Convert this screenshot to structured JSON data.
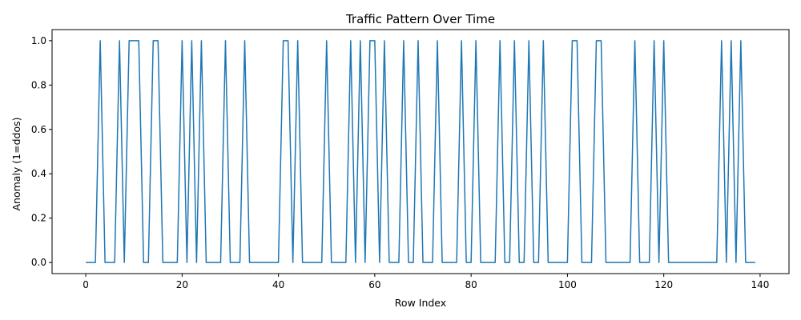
{
  "chart_data": {
    "type": "line",
    "title": "Traffic Pattern Over Time",
    "xlabel": "Row Index",
    "ylabel": "Anomaly (1=ddos)",
    "xlim": [
      -7,
      146
    ],
    "ylim": [
      -0.05,
      1.05
    ],
    "xticks": [
      0,
      20,
      40,
      60,
      80,
      100,
      120,
      140
    ],
    "yticks": [
      "0.0",
      "0.2",
      "0.4",
      "0.6",
      "0.8",
      "1.0"
    ],
    "grid": false,
    "series_color": "#1f77b4",
    "series": [
      {
        "x": [
          0,
          1,
          2,
          3,
          4,
          5,
          6,
          7,
          8,
          9,
          10,
          11,
          12,
          13,
          14,
          15,
          16,
          17,
          18,
          19,
          20,
          21,
          22,
          23,
          24,
          25,
          26,
          27,
          28,
          29,
          30,
          31,
          32,
          33,
          34,
          35,
          36,
          37,
          38,
          39,
          40,
          41,
          42,
          43,
          44,
          45,
          46,
          47,
          48,
          49,
          50,
          51,
          52,
          53,
          54,
          55,
          56,
          57,
          58,
          59,
          60,
          61,
          62,
          63,
          64,
          65,
          66,
          67,
          68,
          69,
          70,
          71,
          72,
          73,
          74,
          75,
          76,
          77,
          78,
          79,
          80,
          81,
          82,
          83,
          84,
          85,
          86,
          87,
          88,
          89,
          90,
          91,
          92,
          93,
          94,
          95,
          96,
          97,
          98,
          99,
          100,
          101,
          102,
          103,
          104,
          105,
          106,
          107,
          108,
          109,
          110,
          111,
          112,
          113,
          114,
          115,
          116,
          117,
          118,
          119,
          120,
          121,
          122,
          123,
          124,
          125,
          126,
          127,
          128,
          129,
          130,
          131,
          132,
          133,
          134,
          135,
          136,
          137,
          138,
          139
        ],
        "y": [
          0,
          0,
          0,
          1,
          0,
          0,
          0,
          1,
          0,
          1,
          1,
          1,
          0,
          0,
          1,
          1,
          0,
          0,
          0,
          0,
          1,
          0,
          1,
          0,
          1,
          0,
          0,
          0,
          0,
          1,
          0,
          0,
          0,
          1,
          0,
          0,
          0,
          0,
          0,
          0,
          0,
          1,
          1,
          0,
          1,
          0,
          0,
          0,
          0,
          0,
          1,
          0,
          0,
          0,
          0,
          1,
          0,
          1,
          0,
          1,
          1,
          0,
          1,
          0,
          0,
          0,
          1,
          0,
          0,
          1,
          0,
          0,
          0,
          1,
          0,
          0,
          0,
          0,
          1,
          0,
          0,
          1,
          0,
          0,
          0,
          0,
          1,
          0,
          0,
          1,
          0,
          0,
          1,
          0,
          0,
          1,
          0,
          0,
          0,
          0,
          0,
          1,
          1,
          0,
          0,
          0,
          1,
          1,
          0,
          0,
          0,
          0,
          0,
          0,
          1,
          0,
          0,
          0,
          1,
          0,
          1,
          0,
          0,
          0,
          0,
          0,
          0,
          0,
          0,
          0,
          0,
          0,
          1,
          0,
          1,
          0,
          1,
          0,
          0,
          0
        ]
      }
    ]
  }
}
